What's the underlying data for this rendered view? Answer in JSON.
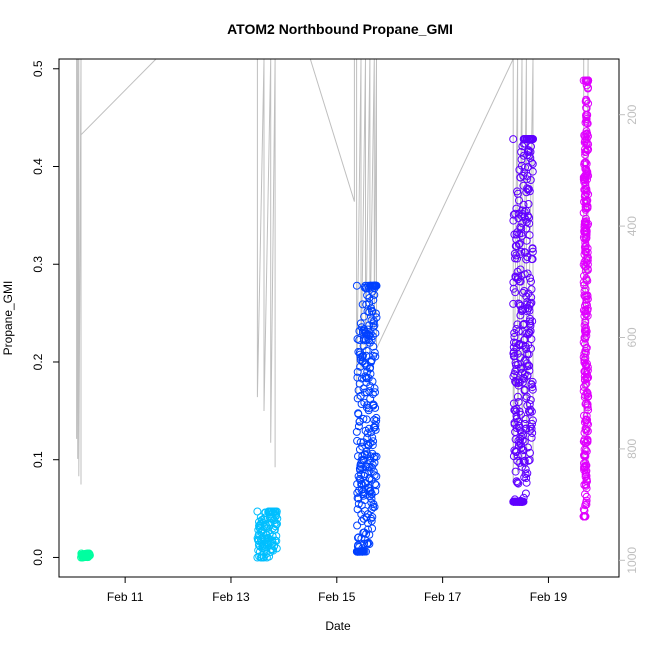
{
  "chart_data": {
    "type": "scatter",
    "title": "ATOM2 Northbound Propane_GMI",
    "xlabel": "Date",
    "ylabel": "Propane_GMI",
    "xlim": [
      "2018-02-09 18:00",
      "2018-02-20 08:00"
    ],
    "ylim": [
      -0.02,
      0.51
    ],
    "y_ticks": [
      "0.0",
      "0.1",
      "0.2",
      "0.3",
      "0.4",
      "0.5"
    ],
    "x_ticks": [
      {
        "date": "2018-02-11",
        "label": "Feb 11"
      },
      {
        "date": "2018-02-13",
        "label": "Feb 13"
      },
      {
        "date": "2018-02-15",
        "label": "Feb 15"
      },
      {
        "date": "2018-02-17",
        "label": "Feb 17"
      },
      {
        "date": "2018-02-19",
        "label": "Feb 19"
      }
    ],
    "secondary_axis": {
      "side": "right",
      "color": "#bfbfbf",
      "ticks": [
        "200",
        "400",
        "600",
        "800",
        "1000"
      ],
      "range": [
        100,
        1030
      ],
      "reversed": true
    },
    "series": [
      {
        "color": "#00ffa0",
        "x_range": [
          "2018-02-10 04:00",
          "2018-02-10 08:00"
        ],
        "y_range": [
          0.0,
          0.004
        ],
        "points": 40
      },
      {
        "color": "#00bfff",
        "x_range": [
          "2018-02-13 12:00",
          "2018-02-13 21:00"
        ],
        "y_range": [
          0.0,
          0.047
        ],
        "points": 120
      },
      {
        "color": "#0040ff",
        "x_range": [
          "2018-02-15 09:00",
          "2018-02-15 18:00"
        ],
        "y_range": [
          0.006,
          0.278
        ],
        "points": 300
      },
      {
        "color": "#6000ff",
        "x_range": [
          "2018-02-18 08:00",
          "2018-02-18 17:00"
        ],
        "y_range": [
          0.057,
          0.428
        ],
        "points": 350
      },
      {
        "color": "#e000ff",
        "x_range": [
          "2018-02-19 16:00",
          "2018-02-19 18:00"
        ],
        "y_range": [
          0.042,
          0.488
        ],
        "points": 350
      }
    ],
    "overlay_line": {
      "color": "#bfbfbf",
      "axis": "secondary",
      "points": [
        [
          "2018-02-10 02:00",
          100
        ],
        [
          "2018-02-10 02:00",
          782
        ],
        [
          "2018-02-10 02:30",
          100
        ],
        [
          "2018-02-10 02:30",
          818
        ],
        [
          "2018-02-10 03:00",
          100
        ],
        [
          "2018-02-10 03:00",
          849
        ],
        [
          "2018-02-10 04:00",
          100
        ],
        [
          "2018-02-10 04:00",
          864
        ],
        [
          "2018-02-10 04:00",
          236
        ],
        [
          "2018-02-11 14:00",
          100
        ],
        [
          "2018-02-13 12:00",
          100
        ],
        [
          "2018-02-13 12:00",
          707
        ],
        [
          "2018-02-13 15:00",
          100
        ],
        [
          "2018-02-13 15:00",
          732
        ],
        [
          "2018-02-13 18:00",
          100
        ],
        [
          "2018-02-13 18:00",
          789
        ],
        [
          "2018-02-13 20:00",
          100
        ],
        [
          "2018-02-13 20:00",
          833
        ],
        [
          "2018-02-13 20:00",
          100
        ],
        [
          "2018-02-14 12:00",
          100
        ],
        [
          "2018-02-15 08:00",
          356
        ],
        [
          "2018-02-15 08:00",
          100
        ],
        [
          "2018-02-15 09:00",
          100
        ],
        [
          "2018-02-15 09:00",
          711
        ],
        [
          "2018-02-15 11:00",
          100
        ],
        [
          "2018-02-15 11:00",
          664
        ],
        [
          "2018-02-15 13:00",
          100
        ],
        [
          "2018-02-15 13:00",
          633
        ],
        [
          "2018-02-15 15:00",
          100
        ],
        [
          "2018-02-15 15:00",
          606
        ],
        [
          "2018-02-15 17:00",
          100
        ],
        [
          "2018-02-15 17:00",
          583
        ],
        [
          "2018-02-15 18:00",
          100
        ],
        [
          "2018-02-15 18:00",
          620
        ],
        [
          "2018-02-18 08:00",
          100
        ],
        [
          "2018-02-18 08:00",
          860
        ],
        [
          "2018-02-18 10:00",
          100
        ],
        [
          "2018-02-18 10:00",
          843
        ],
        [
          "2018-02-18 12:00",
          100
        ],
        [
          "2018-02-18 12:00",
          842
        ],
        [
          "2018-02-18 14:00",
          100
        ],
        [
          "2018-02-18 14:00",
          834
        ],
        [
          "2018-02-18 17:00",
          100
        ],
        [
          "2018-02-18 17:00",
          820
        ],
        [
          "2018-02-18 17:00",
          100
        ],
        [
          "2018-02-19 16:00",
          100
        ],
        [
          "2018-02-19 16:00",
          826
        ],
        [
          "2018-02-19 18:00",
          100
        ],
        [
          "2018-02-19 18:00",
          850
        ]
      ]
    },
    "marker": "open-circle",
    "grid": false,
    "legend": "none"
  }
}
